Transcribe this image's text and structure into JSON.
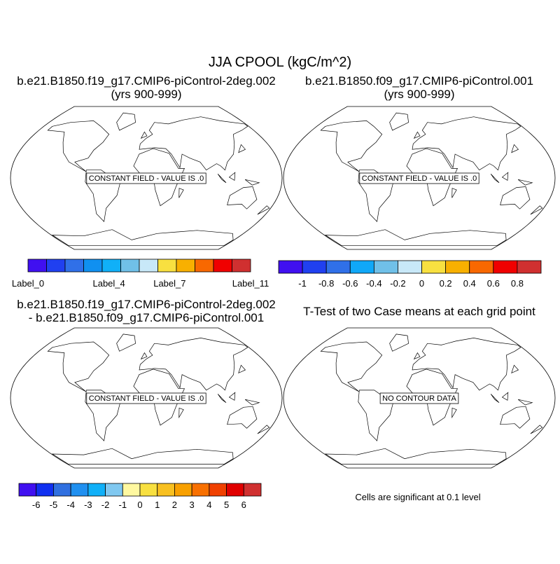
{
  "title": "JJA CPOOL (kgC/m^2)",
  "panels": [
    {
      "title": [
        "b.e21.B1850.f19_g17.CMIP6-piControl-2deg.002",
        "(yrs 900-999)"
      ],
      "label": "CONSTANT FIELD - VALUE IS .0",
      "colorbar": {
        "colors": [
          "#4010f0",
          "#2040f0",
          "#3070e8",
          "#1090f0",
          "#10b0f8",
          "#70c0e8",
          "#c8e8f8",
          "#f8e040",
          "#f8b000",
          "#f86800",
          "#f00000",
          "#d03030"
        ],
        "labels": [
          "Label_0",
          null,
          null,
          null,
          "Label_4",
          null,
          null,
          "Label_7",
          null,
          null,
          null,
          "Label_11"
        ]
      }
    },
    {
      "title": [
        "b.e21.B1850.f09_g17.CMIP6-piControl.001",
        "(yrs 900-999)"
      ],
      "label": "CONSTANT FIELD - VALUE IS .0",
      "colorbar": {
        "colors": [
          "#4010f0",
          "#2040f0",
          "#3070e8",
          "#10a8f8",
          "#70c0e8",
          "#c8e8f8",
          "#f8e040",
          "#f8b000",
          "#f86800",
          "#f00000",
          "#d03030"
        ],
        "levels": [
          -1,
          -0.8,
          -0.6,
          -0.4,
          -0.2,
          0,
          0.2,
          0.4,
          0.6,
          0.8
        ]
      }
    },
    {
      "title": [
        "b.e21.B1850.f19_g17.CMIP6-piControl-2deg.002",
        "- b.e21.B1850.f09_g17.CMIP6-piControl.001"
      ],
      "label": "CONSTANT FIELD - VALUE IS .0",
      "colorbar": {
        "colors": [
          "#4010f0",
          "#1030f0",
          "#3070e0",
          "#2090f0",
          "#10b0f8",
          "#80c8f0",
          "#fff8a0",
          "#f8e040",
          "#f8c020",
          "#f8a000",
          "#f87000",
          "#f04000",
          "#e00000",
          "#d03030"
        ],
        "levels": [
          -6,
          -5,
          -4,
          -3,
          -2,
          -1,
          0,
          1,
          2,
          3,
          4,
          5,
          6
        ]
      }
    },
    {
      "title": [
        "T-Test of two Case means at each grid point"
      ],
      "label": "NO CONTOUR DATA",
      "note": "Cells are significant at 0.1 level"
    }
  ]
}
